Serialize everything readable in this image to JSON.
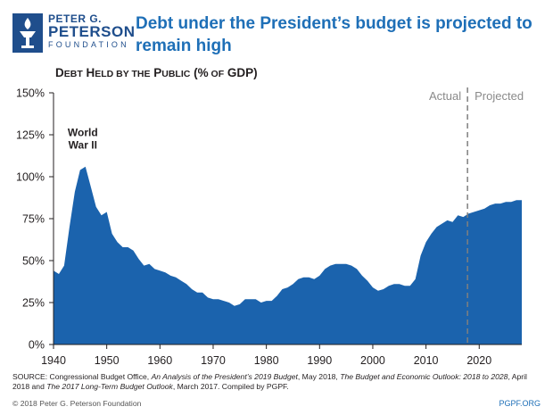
{
  "brand": {
    "logo_line1": "PETER G.",
    "logo_line2": "PETERSON",
    "logo_line3": "FOUNDATION",
    "primary_color": "#1e6fb7",
    "logo_color": "#1f4e8c",
    "area_color": "#1b63ad"
  },
  "headline": "Debt under the President’s budget is projected to remain high",
  "chart_data": {
    "type": "area",
    "title": "Debt Held by the Public (% of GDP)",
    "xlabel": "",
    "ylabel": "",
    "xlim": [
      1940,
      2028
    ],
    "ylim": [
      0,
      150
    ],
    "x_ticks": [
      "1940",
      "1950",
      "1960",
      "1970",
      "1980",
      "1990",
      "2000",
      "2010",
      "2020"
    ],
    "y_ticks": [
      "0%",
      "25%",
      "50%",
      "75%",
      "100%",
      "125%",
      "150%"
    ],
    "grid": false,
    "divider_year": 2017.8,
    "period_labels": {
      "actual": "Actual",
      "projected": "Projected"
    },
    "annotation": {
      "line1": "World",
      "line2": "War II",
      "year": 1946,
      "value": 106
    },
    "series": [
      {
        "name": "Debt Held by the Public",
        "x": [
          1940,
          1941,
          1942,
          1943,
          1944,
          1945,
          1946,
          1947,
          1948,
          1949,
          1950,
          1951,
          1952,
          1953,
          1954,
          1955,
          1956,
          1957,
          1958,
          1959,
          1960,
          1961,
          1962,
          1963,
          1964,
          1965,
          1966,
          1967,
          1968,
          1969,
          1970,
          1971,
          1972,
          1973,
          1974,
          1975,
          1976,
          1977,
          1978,
          1979,
          1980,
          1981,
          1982,
          1983,
          1984,
          1985,
          1986,
          1987,
          1988,
          1989,
          1990,
          1991,
          1992,
          1993,
          1994,
          1995,
          1996,
          1997,
          1998,
          1999,
          2000,
          2001,
          2002,
          2003,
          2004,
          2005,
          2006,
          2007,
          2008,
          2009,
          2010,
          2011,
          2012,
          2013,
          2014,
          2015,
          2016,
          2017,
          2018,
          2019,
          2020,
          2021,
          2022,
          2023,
          2024,
          2025,
          2026,
          2027,
          2028
        ],
        "values": [
          44,
          42,
          47,
          70,
          91,
          104,
          106,
          94,
          82,
          77,
          79,
          66,
          61,
          58,
          58,
          56,
          51,
          47,
          48,
          45,
          44,
          43,
          41,
          40,
          38,
          36,
          33,
          31,
          31,
          28,
          27,
          27,
          26,
          25,
          23,
          24,
          27,
          27,
          27,
          25,
          26,
          26,
          29,
          33,
          34,
          36,
          39,
          40,
          40,
          39,
          41,
          45,
          47,
          48,
          48,
          48,
          47,
          45,
          41,
          38,
          34,
          32,
          33,
          35,
          36,
          36,
          35,
          35,
          39,
          53,
          61,
          66,
          70,
          72,
          74,
          73,
          77,
          76,
          78,
          79,
          80,
          81,
          83,
          84,
          84,
          85,
          85,
          86,
          86
        ]
      }
    ]
  },
  "footer": {
    "source": "SOURCE: Congressional Budget Office, An Analysis of the President’s 2019 Budget, May 2018, The Budget and Economic Outlook: 2018 to 2028, April 2018 and The 2017 Long-Term Budget Outlook, March 2017. Compiled by PGPF.",
    "copyright": "© 2018 Peter G. Peterson Foundation",
    "website": "PGPF.ORG"
  }
}
